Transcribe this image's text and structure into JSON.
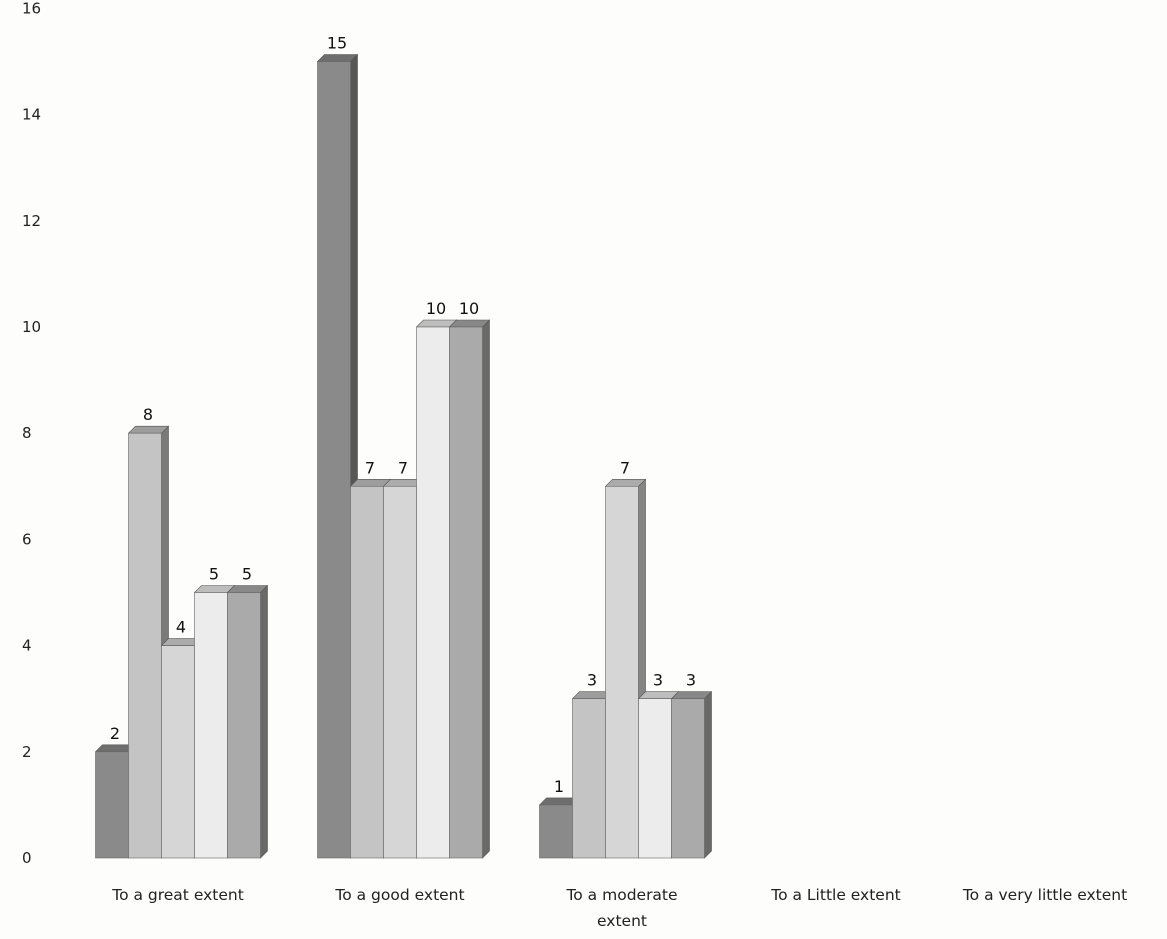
{
  "chart_data": {
    "type": "bar",
    "style": "3d-clustered-column",
    "title": "",
    "xlabel": "",
    "ylabel": "",
    "ylim": [
      0,
      16
    ],
    "yticks": [
      0,
      2,
      4,
      6,
      8,
      10,
      12,
      14,
      16
    ],
    "grid": false,
    "legend": "none",
    "categories": [
      [
        "To a great extent"
      ],
      [
        "To a good extent"
      ],
      [
        "To a moderate",
        "extent"
      ],
      [
        "To a Little extent"
      ],
      [
        "To a very little extent"
      ]
    ],
    "series": [
      {
        "values": [
          2,
          15,
          1,
          null,
          null
        ],
        "color": "#8a8a8a"
      },
      {
        "values": [
          8,
          7,
          3,
          null,
          null
        ],
        "color": "#c4c4c4"
      },
      {
        "values": [
          4,
          7,
          7,
          null,
          null
        ],
        "color": "#d6d6d6"
      },
      {
        "values": [
          5,
          10,
          3,
          null,
          null
        ],
        "color": "#ececec"
      },
      {
        "values": [
          5,
          10,
          3,
          null,
          null
        ],
        "color": "#aaaaaa"
      }
    ]
  }
}
